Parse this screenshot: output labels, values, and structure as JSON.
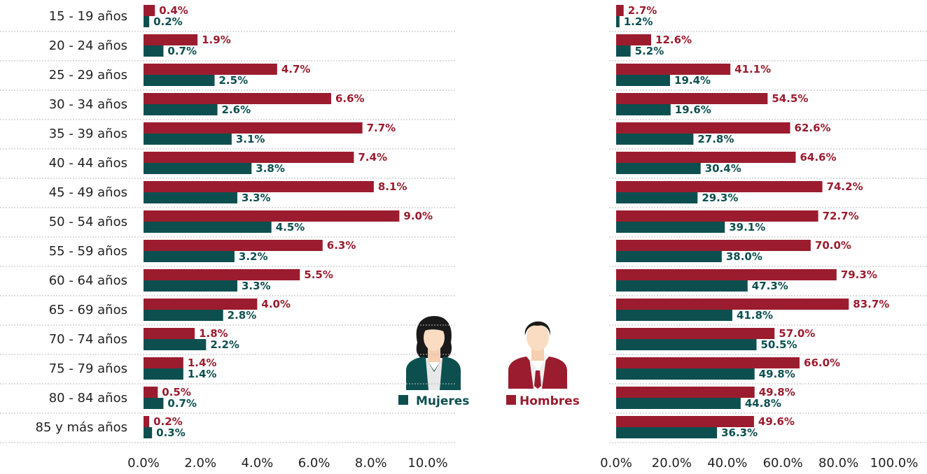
{
  "chart_data": [
    {
      "type": "bar",
      "orientation": "horizontal",
      "categories": [
        "15 - 19 años",
        "20 - 24 años",
        "25 - 29 años",
        "30 - 34 años",
        "35 - 39 años",
        "40 - 44 años",
        "45 - 49 años",
        "50 - 54 años",
        "55 - 59 años",
        "60 - 64 años",
        "65 - 69 años",
        "70 - 74 años",
        "75 - 79 años",
        "80 - 84 años",
        "85 y más años"
      ],
      "series": [
        {
          "name": "Mujeres",
          "color": "#0d4f4f",
          "values": [
            0.2,
            0.7,
            2.5,
            2.6,
            3.1,
            3.8,
            3.3,
            4.5,
            3.2,
            3.3,
            2.8,
            2.2,
            1.4,
            0.7,
            0.3
          ],
          "value_labels": [
            "0.2%",
            "0.7%",
            "2.5%",
            "2.6%",
            "3.1%",
            "3.8%",
            "3.3%",
            "4.5%",
            "3.2%",
            "3.3%",
            "2.8%",
            "2.2%",
            "1.4%",
            "0.7%",
            "0.3%"
          ]
        },
        {
          "name": "Hombres",
          "color": "#9b1c2e",
          "values": [
            0.4,
            1.9,
            4.7,
            6.6,
            7.7,
            7.4,
            8.1,
            9.0,
            6.3,
            5.5,
            4.0,
            1.8,
            1.4,
            0.5,
            0.2
          ],
          "value_labels": [
            "0.4%",
            "1.9%",
            "4.7%",
            "6.6%",
            "7.7%",
            "7.4%",
            "8.1%",
            "9.0%",
            "6.3%",
            "5.5%",
            "4.0%",
            "1.8%",
            "1.4%",
            "0.5%",
            "0.2%"
          ]
        }
      ],
      "xlim": [
        0,
        10
      ],
      "xticks": [
        {
          "value": 0,
          "label": "0.0%"
        },
        {
          "value": 2,
          "label": "2.0%"
        },
        {
          "value": 4,
          "label": "4.0%"
        },
        {
          "value": 6,
          "label": "6.0%"
        },
        {
          "value": 8,
          "label": "8.0%"
        },
        {
          "value": 10,
          "label": "10.0%"
        }
      ]
    },
    {
      "type": "bar",
      "orientation": "horizontal",
      "series": [
        {
          "name": "Mujeres",
          "color": "#0d4f4f",
          "values": [
            1.2,
            5.2,
            19.4,
            19.6,
            27.8,
            30.4,
            29.3,
            39.1,
            38.0,
            47.3,
            41.8,
            50.5,
            49.8,
            44.8,
            36.3
          ],
          "value_labels": [
            "1.2%",
            "5.2%",
            "19.4%",
            "19.6%",
            "27.8%",
            "30.4%",
            "29.3%",
            "39.1%",
            "38.0%",
            "47.3%",
            "41.8%",
            "50.5%",
            "49.8%",
            "44.8%",
            "36.3%"
          ]
        },
        {
          "name": "Hombres",
          "color": "#9b1c2e",
          "values": [
            2.7,
            12.6,
            41.1,
            54.5,
            62.6,
            64.6,
            74.2,
            72.7,
            70.0,
            79.3,
            83.7,
            57.0,
            66.0,
            49.8,
            49.6
          ],
          "value_labels": [
            "2.7%",
            "12.6%",
            "41.1%",
            "54.5%",
            "62.6%",
            "64.6%",
            "74.2%",
            "72.7%",
            "70.0%",
            "79.3%",
            "83.7%",
            "57.0%",
            "66.0%",
            "49.8%",
            "49.6%"
          ]
        }
      ],
      "xlim": [
        0,
        100
      ],
      "xticks": [
        {
          "value": 0,
          "label": "0.0%"
        },
        {
          "value": 20,
          "label": "20.0%"
        },
        {
          "value": 40,
          "label": "40.0%"
        },
        {
          "value": 60,
          "label": "60.0%"
        },
        {
          "value": 80,
          "label": "80.0%"
        },
        {
          "value": 100,
          "label": "100.0%"
        }
      ]
    }
  ]
}
